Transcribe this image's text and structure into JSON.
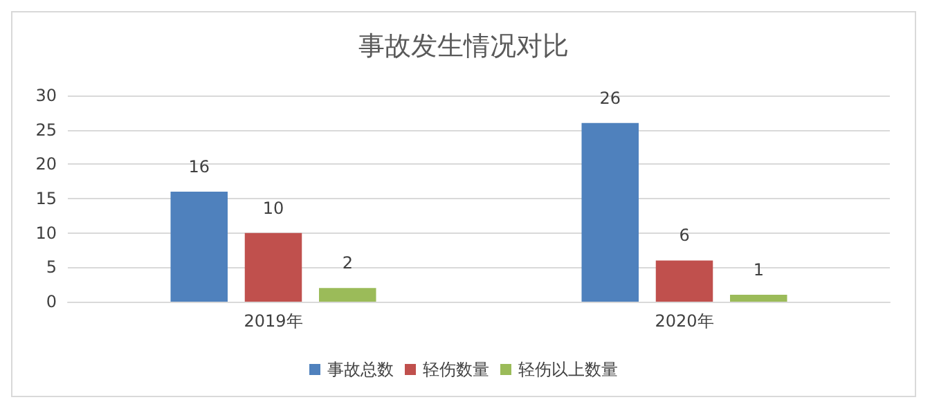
{
  "chart_data": {
    "type": "bar",
    "title": "事故发生情况对比",
    "categories": [
      "2019年",
      "2020年"
    ],
    "series": [
      {
        "name": "事故总数",
        "color": "#4f81bd",
        "values": [
          16,
          26
        ]
      },
      {
        "name": "轻伤数量",
        "color": "#c0504d",
        "values": [
          10,
          6
        ]
      },
      {
        "name": "轻伤以上数量",
        "color": "#9bbb59",
        "values": [
          2,
          1
        ]
      }
    ],
    "ylim": [
      0,
      30
    ],
    "yticks": [
      0,
      5,
      10,
      15,
      20,
      25,
      30
    ],
    "grid": "y",
    "legend": "bottom",
    "data_labels": true
  }
}
